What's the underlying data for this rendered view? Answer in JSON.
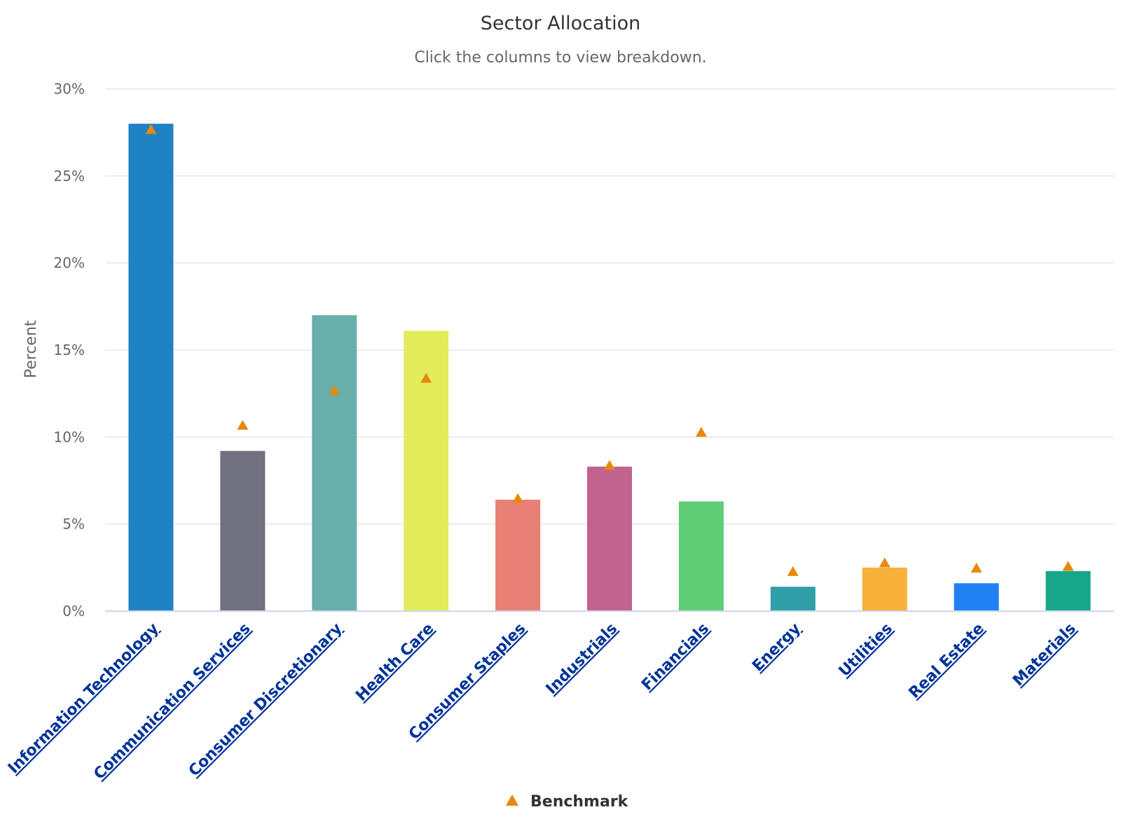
{
  "chart_data": {
    "type": "bar",
    "title": "Sector Allocation",
    "subtitle": "Click the columns to view breakdown.",
    "ylabel": "Percent",
    "xlabel": "",
    "ylim": [
      0,
      30
    ],
    "yticks": [
      0,
      5,
      10,
      15,
      20,
      25,
      30
    ],
    "ytick_suffix": "%",
    "grid": true,
    "legend_position": "bottom-center",
    "categories": [
      "Information Technology",
      "Communication Services",
      "Consumer Discretionary",
      "Health Care",
      "Consumer Staples",
      "Industrials",
      "Financials",
      "Energy",
      "Utilities",
      "Real Estate",
      "Materials"
    ],
    "values": [
      28.0,
      9.2,
      17.0,
      16.1,
      6.4,
      8.3,
      6.3,
      1.4,
      2.5,
      1.6,
      2.3
    ],
    "bar_colors": [
      "#1f82c5",
      "#70707e",
      "#67b0ab",
      "#e3ec5a",
      "#e88075",
      "#c2628e",
      "#5ecd75",
      "#319fa8",
      "#f8b13a",
      "#2281f2",
      "#17a68a"
    ],
    "series": [
      {
        "name": "Benchmark",
        "type": "scatter",
        "marker": "triangle",
        "color": "#e8890c",
        "values": [
          27.7,
          10.7,
          12.7,
          13.4,
          6.5,
          8.4,
          10.3,
          2.3,
          2.8,
          2.5,
          2.6
        ]
      }
    ]
  }
}
